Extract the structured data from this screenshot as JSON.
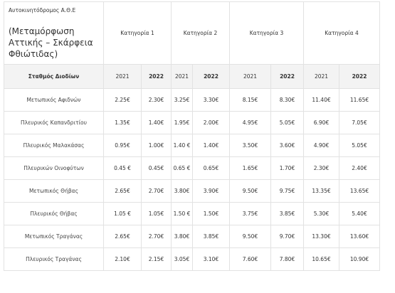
{
  "table": {
    "road_label": "Αυτοκινητόδρομος Α.Θ.Ε",
    "route_label": "(Μεταμόρφωση Αττικής – Σκάρφεια Φθιώτιδας)",
    "categories": [
      "Κατηγορία  1",
      "Κατηγορία 2",
      "Κατηγορία 3",
      "Κατηγορία 4"
    ],
    "station_header": "Σταθμός Διοδίων",
    "years": [
      "2021",
      "2022"
    ],
    "rows": [
      {
        "station": "Μετωπικός Αφιδνών",
        "values": [
          "2.25€",
          "2.30€",
          "3.25€",
          "3.30€",
          "8.15€",
          "8.30€",
          "11.40€",
          "11.65€"
        ]
      },
      {
        "station": "Πλευρικός Καπανδριτίου",
        "values": [
          "1.35€",
          "1.40€",
          "1.95€",
          "2.00€",
          "4.95€",
          "5.05€",
          "6.90€",
          "7.05€"
        ]
      },
      {
        "station": "Πλευρικός Μαλακάσας",
        "values": [
          "0.95€",
          "1.00€",
          "1.40 €",
          "1.40€",
          "3.50€",
          "3.60€",
          "4.90€",
          "5.05€"
        ]
      },
      {
        "station": "Πλευρικών Οινοφύτων",
        "values": [
          "0.45 €",
          "0.45€",
          "0.65 €",
          "0.65€",
          "1.65€",
          "1.70€",
          "2.30€",
          "2.40€"
        ]
      },
      {
        "station": "Μετωπικός Θήβας",
        "values": [
          "2.65€",
          "2.70€",
          "3.80€",
          "3.90€",
          "9.50€",
          "9.75€",
          "13.35€",
          "13.65€"
        ]
      },
      {
        "station": "Πλευρικός Θήβας",
        "values": [
          "1.05 €",
          "1.05€",
          "1.50 €",
          "1.50€",
          "3.75€",
          "3.85€",
          "5.30€",
          "5.40€"
        ]
      },
      {
        "station": "Μετωπικός Τραγάνας",
        "values": [
          "2.65€",
          "2.70€",
          "3.80€",
          "3.85€",
          "9.50€",
          "9.70€",
          "13.30€",
          "13.60€"
        ]
      },
      {
        "station": "Πλευρικός Τραγάνας",
        "values": [
          "2.10€",
          "2.15€",
          "3.05€",
          "3.10€",
          "7.60€",
          "7.80€",
          "10.65€",
          "10.90€"
        ]
      }
    ]
  }
}
